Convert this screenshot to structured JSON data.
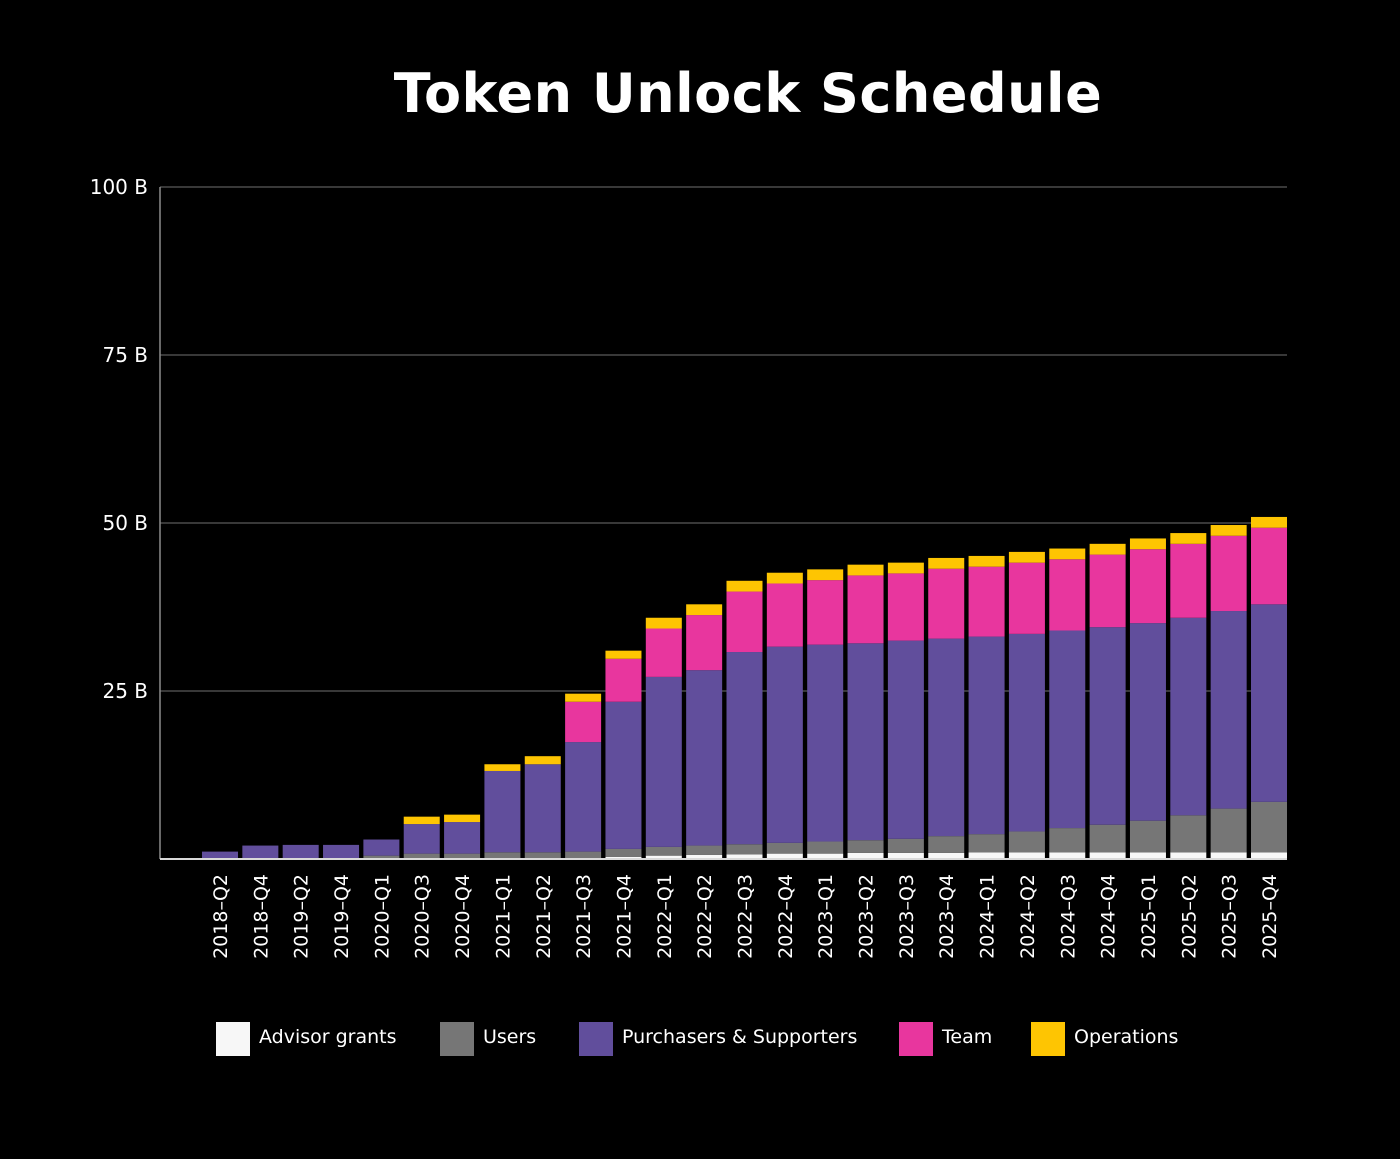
{
  "chart_data": {
    "type": "bar",
    "stacked": true,
    "title": "Token Unlock Schedule",
    "xlabel": "",
    "ylabel": "",
    "ylim": [
      0,
      100
    ],
    "yticks": [
      {
        "value": 25,
        "label": "25 B"
      },
      {
        "value": 50,
        "label": "50 B"
      },
      {
        "value": 75,
        "label": "75 B"
      },
      {
        "value": 100,
        "label": "100 B"
      }
    ],
    "grid": true,
    "legend": "bottom",
    "categories": [
      "2018–Q2",
      "2018–Q4",
      "2019–Q2",
      "2019–Q4",
      "2020–Q1",
      "2020–Q3",
      "2020–Q4",
      "2021–Q1",
      "2021–Q2",
      "2021–Q3",
      "2021–Q4",
      "2022–Q1",
      "2022–Q2",
      "2022–Q3",
      "2022–Q4",
      "2023–Q1",
      "2023–Q2",
      "2023–Q3",
      "2023–Q4",
      "2024–Q1",
      "2024–Q2",
      "2024–Q3",
      "2024–Q4",
      "2025–Q1",
      "2025–Q2",
      "2025–Q3",
      "2025–Q4"
    ],
    "series": [
      {
        "name": "Advisor grants",
        "color": "#f7f7f7",
        "values": [
          0,
          0,
          0,
          0,
          0,
          0,
          0,
          0,
          0,
          0.1,
          0.3,
          0.5,
          0.6,
          0.7,
          0.8,
          0.8,
          0.9,
          0.9,
          0.9,
          1.0,
          1.0,
          1.0,
          1.0,
          1.0,
          1.0,
          1.0,
          1.0
        ]
      },
      {
        "name": "Users",
        "color": "#767676",
        "values": [
          0,
          0,
          0,
          0,
          0.5,
          0.8,
          0.8,
          1.0,
          1.0,
          1.0,
          1.2,
          1.3,
          1.4,
          1.5,
          1.6,
          1.8,
          1.9,
          2.1,
          2.5,
          2.7,
          3.1,
          3.6,
          4.1,
          4.7,
          5.5,
          6.5,
          7.5
        ]
      },
      {
        "name": "Purchasers & Supporters",
        "color": "#614e9c",
        "values": [
          1.1,
          2.0,
          2.1,
          2.1,
          2.4,
          4.4,
          4.7,
          12.1,
          13.1,
          16.3,
          21.9,
          25.3,
          26.1,
          28.6,
          29.2,
          29.3,
          29.3,
          29.5,
          29.4,
          29.4,
          29.4,
          29.4,
          29.4,
          29.4,
          29.4,
          29.4,
          29.4
        ]
      },
      {
        "name": "Team",
        "color": "#e8369e",
        "values": [
          0,
          0,
          0,
          0,
          0,
          0,
          0,
          0,
          0,
          6.0,
          6.4,
          7.2,
          8.2,
          9.0,
          9.4,
          9.6,
          10.1,
          10.0,
          10.4,
          10.4,
          10.6,
          10.6,
          10.8,
          11.0,
          11.0,
          11.2,
          11.4
        ]
      },
      {
        "name": "Operations",
        "color": "#fec502",
        "values": [
          0,
          0,
          0,
          0,
          0,
          1.1,
          1.1,
          1.0,
          1.2,
          1.2,
          1.2,
          1.6,
          1.6,
          1.6,
          1.6,
          1.6,
          1.6,
          1.6,
          1.6,
          1.6,
          1.6,
          1.6,
          1.6,
          1.6,
          1.6,
          1.6,
          1.6
        ]
      }
    ]
  }
}
